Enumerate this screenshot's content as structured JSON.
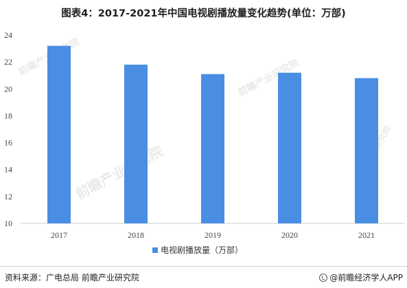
{
  "title": "图表4：2017-2021年中国电视剧播放量变化趋势(单位：万部)",
  "chart_data": {
    "type": "bar",
    "title": "图表4：2017-2021年中国电视剧播放量变化趋势(单位：万部)",
    "xlabel": "",
    "ylabel": "",
    "categories": [
      "2017",
      "2018",
      "2019",
      "2020",
      "2021"
    ],
    "series": [
      {
        "name": "电视剧播放量（万部）",
        "values": [
          23.2,
          21.8,
          21.1,
          21.2,
          20.8
        ]
      }
    ],
    "ylim": [
      10,
      24
    ],
    "yticks": [
      10,
      12,
      14,
      16,
      18,
      20,
      22,
      24
    ],
    "grid": false,
    "legend": "bottom-center",
    "bar_color": "#4a8ee3"
  },
  "watermark_text": "前瞻产业研究院",
  "footer": {
    "source": "资料来源：广电总局  前瞻产业研究院",
    "brand": "@前瞻经济学人APP"
  }
}
